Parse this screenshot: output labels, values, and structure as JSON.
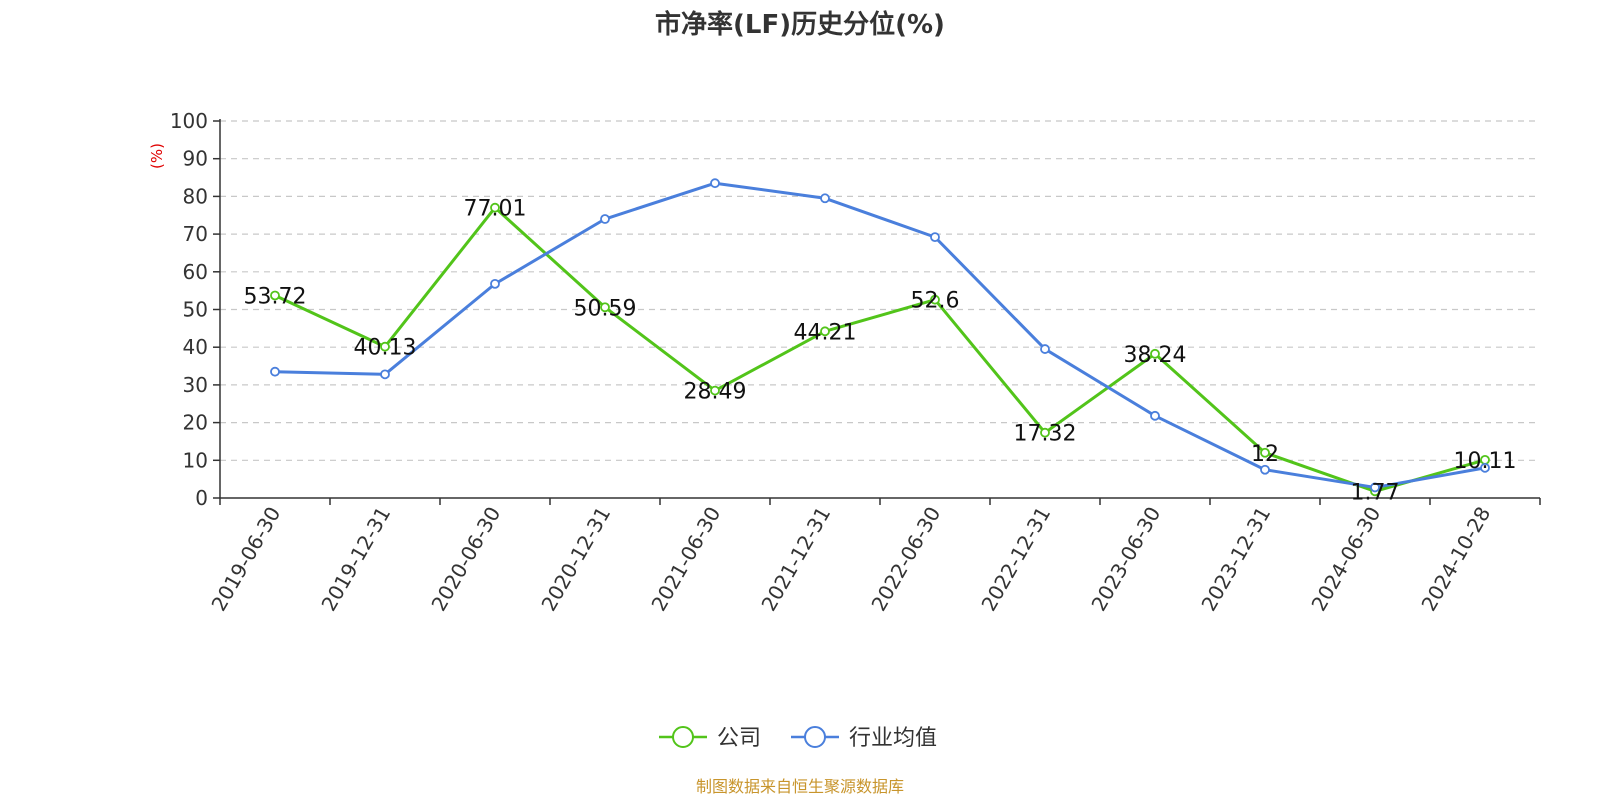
{
  "chart_data": {
    "type": "line",
    "title": "市净率(LF)历史分位(%)",
    "ylabel": "(%)",
    "xlabel": "",
    "ylim": [
      0,
      100
    ],
    "yticks": [
      0,
      10,
      20,
      30,
      40,
      50,
      60,
      70,
      80,
      90,
      100
    ],
    "grid": true,
    "legend_position": "bottom",
    "categories": [
      "2019-06-30",
      "2019-12-31",
      "2020-06-30",
      "2020-12-31",
      "2021-06-30",
      "2021-12-31",
      "2022-06-30",
      "2022-12-31",
      "2023-06-30",
      "2023-12-31",
      "2024-06-30",
      "2024-10-28"
    ],
    "series": [
      {
        "name": "公司",
        "color": "#52c41a",
        "show_labels": true,
        "values": [
          53.72,
          40.13,
          77.01,
          50.59,
          28.49,
          44.21,
          52.6,
          17.32,
          38.24,
          12,
          1.77,
          10.11
        ]
      },
      {
        "name": "行业均值",
        "color": "#4a7fdc",
        "show_labels": false,
        "values": [
          33.5,
          32.8,
          56.8,
          74,
          83.5,
          79.5,
          69.2,
          39.5,
          21.8,
          7.5,
          2.8,
          8
        ]
      }
    ]
  },
  "source_note": "制图数据来自恒生聚源数据库"
}
